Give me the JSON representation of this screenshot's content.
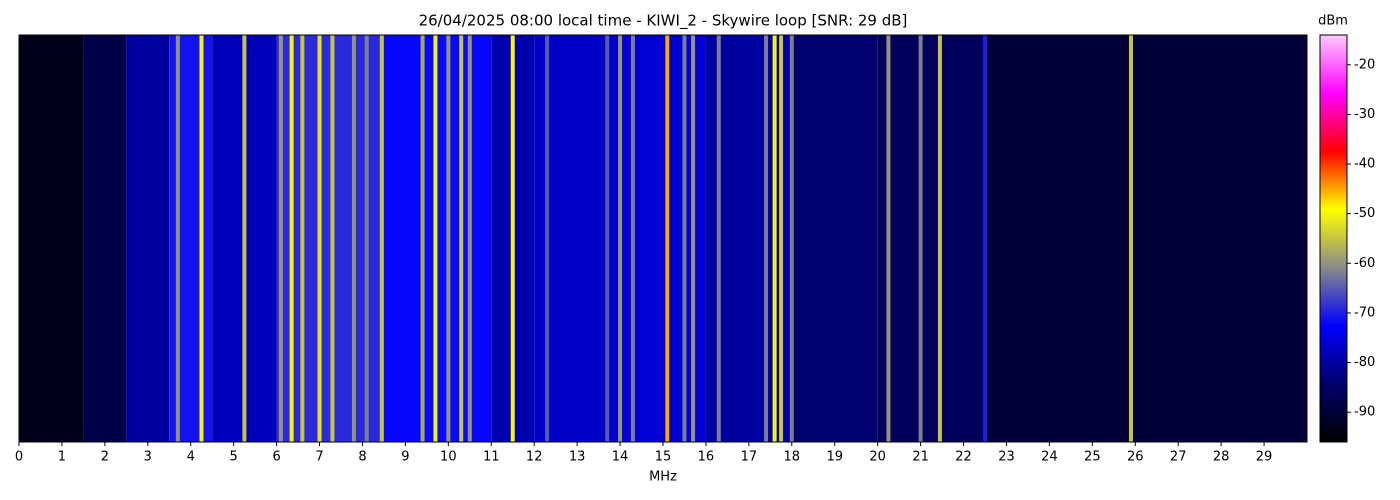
{
  "chart_data": {
    "type": "heatmap",
    "title": "26/04/2025 08:00 local time - KIWI_2 - Skywire loop [SNR: 29 dB]",
    "x_label": "MHz",
    "colorbar_label": "dBm",
    "xlim": [
      0,
      30
    ],
    "xticks": [
      0,
      1,
      2,
      3,
      4,
      5,
      6,
      7,
      8,
      9,
      10,
      11,
      12,
      13,
      14,
      15,
      16,
      17,
      18,
      19,
      20,
      21,
      22,
      23,
      24,
      25,
      26,
      27,
      28,
      29
    ],
    "clim": [
      -96,
      -14
    ],
    "cticks": [
      -90,
      -80,
      -70,
      -60,
      -50,
      -40,
      -30,
      -20
    ],
    "colormap": [
      "#000000",
      "#00006a",
      "#0000ff",
      "#8a8a8a",
      "#ffff00",
      "#ff0000",
      "#ff00ff",
      "#ffc8ff"
    ],
    "xbins": [
      0,
      1.5,
      2.5,
      3.5,
      4.5,
      6,
      8.5,
      11,
      12,
      14,
      16,
      18,
      20,
      22.5,
      30
    ],
    "values": [
      -93,
      -88,
      -80,
      -71,
      -78,
      -69,
      -72,
      -79,
      -77,
      -76,
      -80,
      -84,
      -86,
      -90
    ],
    "signals": {
      "x": [
        3.7,
        4.25,
        5.25,
        6.1,
        6.35,
        6.6,
        7.0,
        7.3,
        7.8,
        8.1,
        8.45,
        9.4,
        9.7,
        10.0,
        10.3,
        10.5,
        11.5,
        12.3,
        13.7,
        14.0,
        14.3,
        15.1,
        15.5,
        15.7,
        16.3,
        17.4,
        17.6,
        17.75,
        18.0,
        20.25,
        21.0,
        21.45,
        22.5,
        25.9
      ],
      "values": [
        -60,
        -50,
        -55,
        -60,
        -50,
        -55,
        -52,
        -55,
        -60,
        -62,
        -55,
        -58,
        -50,
        -60,
        -55,
        -60,
        -50,
        -65,
        -65,
        -60,
        -62,
        -45,
        -62,
        -60,
        -62,
        -62,
        -50,
        -55,
        -62,
        -60,
        -62,
        -55,
        -70,
        -55
      ]
    }
  }
}
